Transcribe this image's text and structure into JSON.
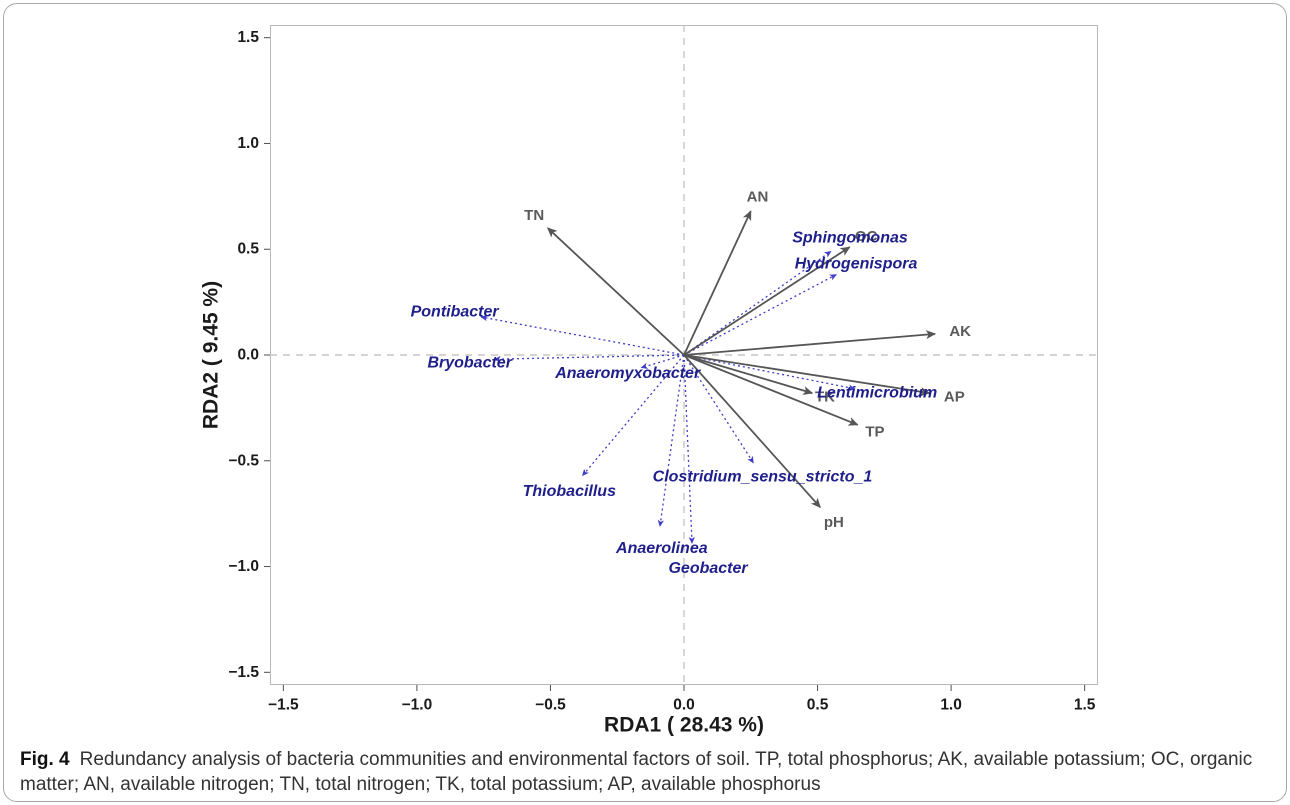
{
  "figure": {
    "label": "Fig. 4",
    "caption": "Redundancy analysis of bacteria communities and environmental factors of soil. TP, total phosphorus; AK, available potassium; OC, organic matter; AN, available nitrogen; TN, total nitrogen; TK, total potassium; AP, available phosphorus"
  },
  "chart_data": {
    "type": "scatter",
    "mark": "arrow",
    "xlabel": "RDA1 ( 28.43 %)",
    "ylabel": "RDA2 ( 9.45 %)",
    "xlim": [
      -1.55,
      1.55
    ],
    "ylim": [
      -1.56,
      1.56
    ],
    "xticks": [
      -1.5,
      -1.0,
      -0.5,
      0.0,
      0.5,
      1.0,
      1.5
    ],
    "xtick_labels": [
      "−1.5",
      "−1.0",
      "−0.5",
      "0.0",
      "0.5",
      "1.0",
      "1.5"
    ],
    "yticks": [
      -1.5,
      -1.0,
      -0.5,
      0.0,
      0.5,
      1.0,
      1.5
    ],
    "ytick_labels": [
      "−1.5",
      "−1.0",
      "−0.5",
      "0.0",
      "0.5",
      "1.0",
      "1.5"
    ],
    "grid": false,
    "reference_lines": {
      "x": 0,
      "y": 0,
      "color": "#c6c6c6"
    },
    "series": [
      {
        "line_style": "solid",
        "color": "#555555",
        "label_color": "#5a5a5a",
        "points": [
          {
            "label": "TN",
            "x": -0.51,
            "y": 0.6
          },
          {
            "label": "AN",
            "x": 0.25,
            "y": 0.68
          },
          {
            "label": "OC",
            "x": 0.62,
            "y": 0.51
          },
          {
            "label": "AK",
            "x": 0.94,
            "y": 0.1
          },
          {
            "label": "AP",
            "x": 0.92,
            "y": -0.18
          },
          {
            "label": "TK",
            "x": 0.48,
            "y": -0.18
          },
          {
            "label": "TP",
            "x": 0.65,
            "y": -0.33
          },
          {
            "label": "pH",
            "x": 0.51,
            "y": -0.72
          }
        ]
      },
      {
        "line_style": "dotted",
        "color": "#3d3dc8",
        "label_color": "#1f1f8c",
        "points": [
          {
            "label": "Sphingomonas",
            "x": 0.55,
            "y": 0.49
          },
          {
            "label": "Hydrogenispora",
            "x": 0.57,
            "y": 0.38
          },
          {
            "label": "Pontibacter",
            "x": -0.76,
            "y": 0.18
          },
          {
            "label": "Bryobacter",
            "x": -0.71,
            "y": -0.02
          },
          {
            "label": "Anaeromyxobacter",
            "x": -0.16,
            "y": -0.06
          },
          {
            "label": "Lentimicrobium",
            "x": 0.64,
            "y": -0.16
          },
          {
            "label": "Clostridium_sensu_stricto_1",
            "x": 0.26,
            "y": -0.51
          },
          {
            "label": "Thiobacillus",
            "x": -0.38,
            "y": -0.57
          },
          {
            "label": "Anaerolinea",
            "x": -0.09,
            "y": -0.81
          },
          {
            "label": "Geobacter",
            "x": 0.03,
            "y": -0.89
          }
        ]
      }
    ]
  }
}
